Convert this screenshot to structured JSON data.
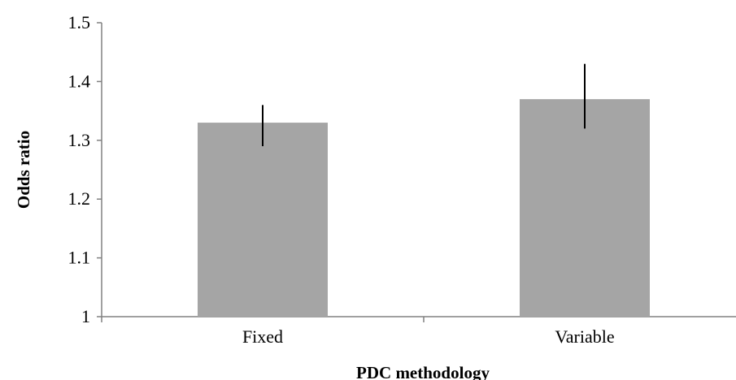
{
  "chart_data": {
    "type": "bar",
    "title": "",
    "xlabel": "PDC methodology",
    "ylabel": "Odds ratio",
    "categories": [
      "Fixed",
      "Variable"
    ],
    "values": [
      1.33,
      1.37
    ],
    "error_low": [
      1.29,
      1.32
    ],
    "error_high": [
      1.36,
      1.43
    ],
    "ylim": [
      1,
      1.5
    ],
    "yticks": [
      1,
      1.1,
      1.2,
      1.3,
      1.4,
      1.5
    ],
    "ytick_labels": [
      "1",
      "1.1",
      "1.2",
      "1.3",
      "1.4",
      "1.5"
    ],
    "grid": false,
    "legend": "none",
    "bar_color": "#a5a5a5",
    "error_bar_color": "#000000",
    "axis_color": "#808080"
  }
}
